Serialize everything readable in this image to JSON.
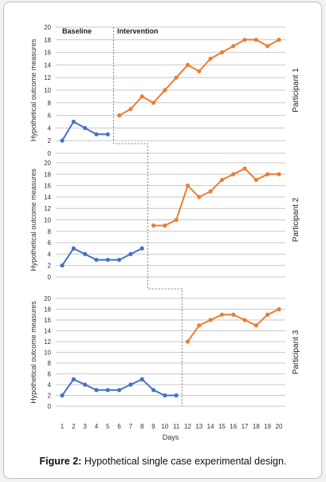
{
  "chart_data": {
    "type": "line",
    "x": [
      1,
      2,
      3,
      4,
      5,
      6,
      7,
      8,
      9,
      10,
      11,
      12,
      13,
      14,
      15,
      16,
      17,
      18,
      19,
      20
    ],
    "xlabel": "Days",
    "ylabel": "Hypothetical outcome measures",
    "ylim": [
      0,
      20
    ],
    "yticks": [
      0,
      2,
      4,
      6,
      8,
      10,
      12,
      14,
      16,
      18,
      20
    ],
    "grid": true,
    "phase_labels": {
      "baseline": "Baseline",
      "intervention": "Intervention"
    },
    "colors": {
      "baseline": "#4472c4",
      "intervention": "#ed7d31",
      "grid": "#c8c8c8",
      "phase_line": "#808080"
    },
    "panels": [
      {
        "label": "Participant 1",
        "baseline": {
          "x": [
            1,
            2,
            3,
            4,
            5
          ],
          "values": [
            2,
            5,
            4,
            3,
            3
          ]
        },
        "intervention": {
          "x": [
            6,
            7,
            8,
            9,
            10,
            11,
            12,
            13,
            14,
            15,
            16,
            17,
            18,
            19,
            20
          ],
          "values": [
            6,
            7,
            9,
            8,
            10,
            12,
            14,
            13,
            15,
            16,
            17,
            18,
            18,
            17,
            18
          ]
        },
        "phase_change_after": 5
      },
      {
        "label": "Participant 2",
        "baseline": {
          "x": [
            1,
            2,
            3,
            4,
            5,
            6,
            7,
            8
          ],
          "values": [
            2,
            5,
            4,
            3,
            3,
            3,
            4,
            5
          ]
        },
        "intervention": {
          "x": [
            9,
            10,
            11,
            12,
            13,
            14,
            15,
            16,
            17,
            18,
            19,
            20
          ],
          "values": [
            9,
            9,
            10,
            16,
            14,
            15,
            17,
            18,
            19,
            17,
            18,
            18
          ]
        },
        "phase_change_after": 8
      },
      {
        "label": "Participant 3",
        "baseline": {
          "x": [
            1,
            2,
            3,
            4,
            5,
            6,
            7,
            8,
            9,
            10,
            11
          ],
          "values": [
            2,
            5,
            4,
            3,
            3,
            3,
            4,
            5,
            3,
            2,
            2
          ]
        },
        "intervention": {
          "x": [
            12,
            13,
            14,
            15,
            16,
            17,
            18,
            19,
            20
          ],
          "values": [
            12,
            15,
            16,
            17,
            17,
            16,
            15,
            17,
            18
          ]
        },
        "phase_change_after": 11
      }
    ]
  },
  "caption": {
    "label": "Figure 2:",
    "text": " Hypothetical single case experimental design."
  }
}
